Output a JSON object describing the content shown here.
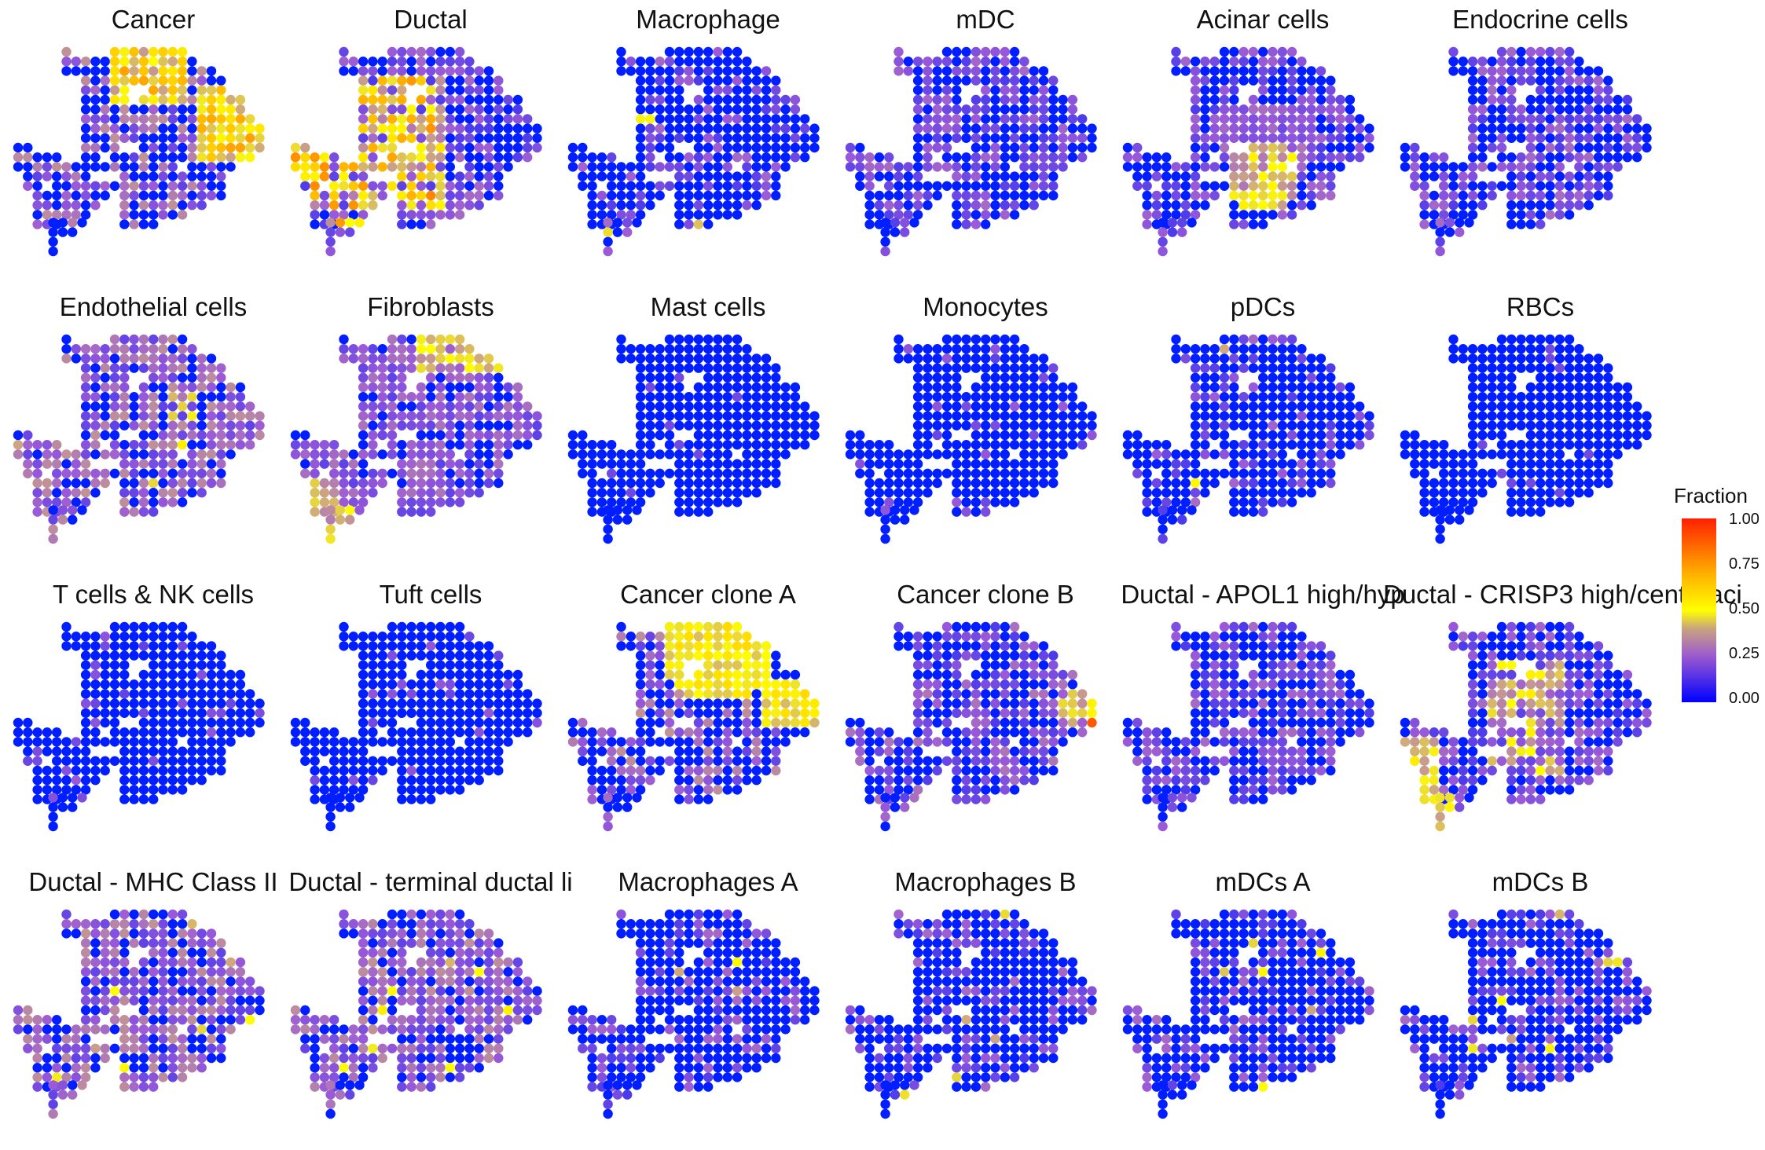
{
  "chart_data": {
    "type": "scatter",
    "description_type": "spatial spot map small multiples",
    "panels": [
      {
        "title": "Cancer",
        "pattern": "cancer"
      },
      {
        "title": "Ductal",
        "pattern": "ductal"
      },
      {
        "title": "Macrophage",
        "pattern": "low_sparse"
      },
      {
        "title": "mDC",
        "pattern": "low_mixed"
      },
      {
        "title": "Acinar cells",
        "pattern": "acinar"
      },
      {
        "title": "Endocrine cells",
        "pattern": "low_mixed"
      },
      {
        "title": "Endothelial cells",
        "pattern": "mid_purple"
      },
      {
        "title": "Fibroblasts",
        "pattern": "fibro"
      },
      {
        "title": "Mast cells",
        "pattern": "blue"
      },
      {
        "title": "Monocytes",
        "pattern": "blue_rare"
      },
      {
        "title": "pDCs",
        "pattern": "low_sparse"
      },
      {
        "title": "RBCs",
        "pattern": "blue"
      },
      {
        "title": "T cells & NK cells",
        "pattern": "blue_rare"
      },
      {
        "title": "Tuft cells",
        "pattern": "blue_rare"
      },
      {
        "title": "Cancer clone A",
        "pattern": "clone_a"
      },
      {
        "title": "Cancer clone B",
        "pattern": "clone_b"
      },
      {
        "title": "Ductal - APOL1 high/hyp",
        "pattern": "low_mixed"
      },
      {
        "title": "Ductal - CRISP3 high/centroaci",
        "pattern": "crisp3"
      },
      {
        "title": "Ductal - MHC Class II",
        "pattern": "mid_purple"
      },
      {
        "title": "Ductal - terminal ductal li",
        "pattern": "mid_purple"
      },
      {
        "title": "Macrophages A",
        "pattern": "low_sparse"
      },
      {
        "title": "Macrophages B",
        "pattern": "low_sparse"
      },
      {
        "title": "mDCs A",
        "pattern": "low_sparse"
      },
      {
        "title": "mDCs B",
        "pattern": "low_sparse"
      }
    ],
    "legend": {
      "title": "Fraction",
      "ticks": [
        "1.00",
        "0.75",
        "0.50",
        "0.25",
        "0.00"
      ],
      "range": [
        0,
        1
      ],
      "colors": {
        "low": "#0000ff",
        "mid_low": "#9b59d0",
        "mid": "#ffff00",
        "high": "#ff2000"
      }
    }
  }
}
